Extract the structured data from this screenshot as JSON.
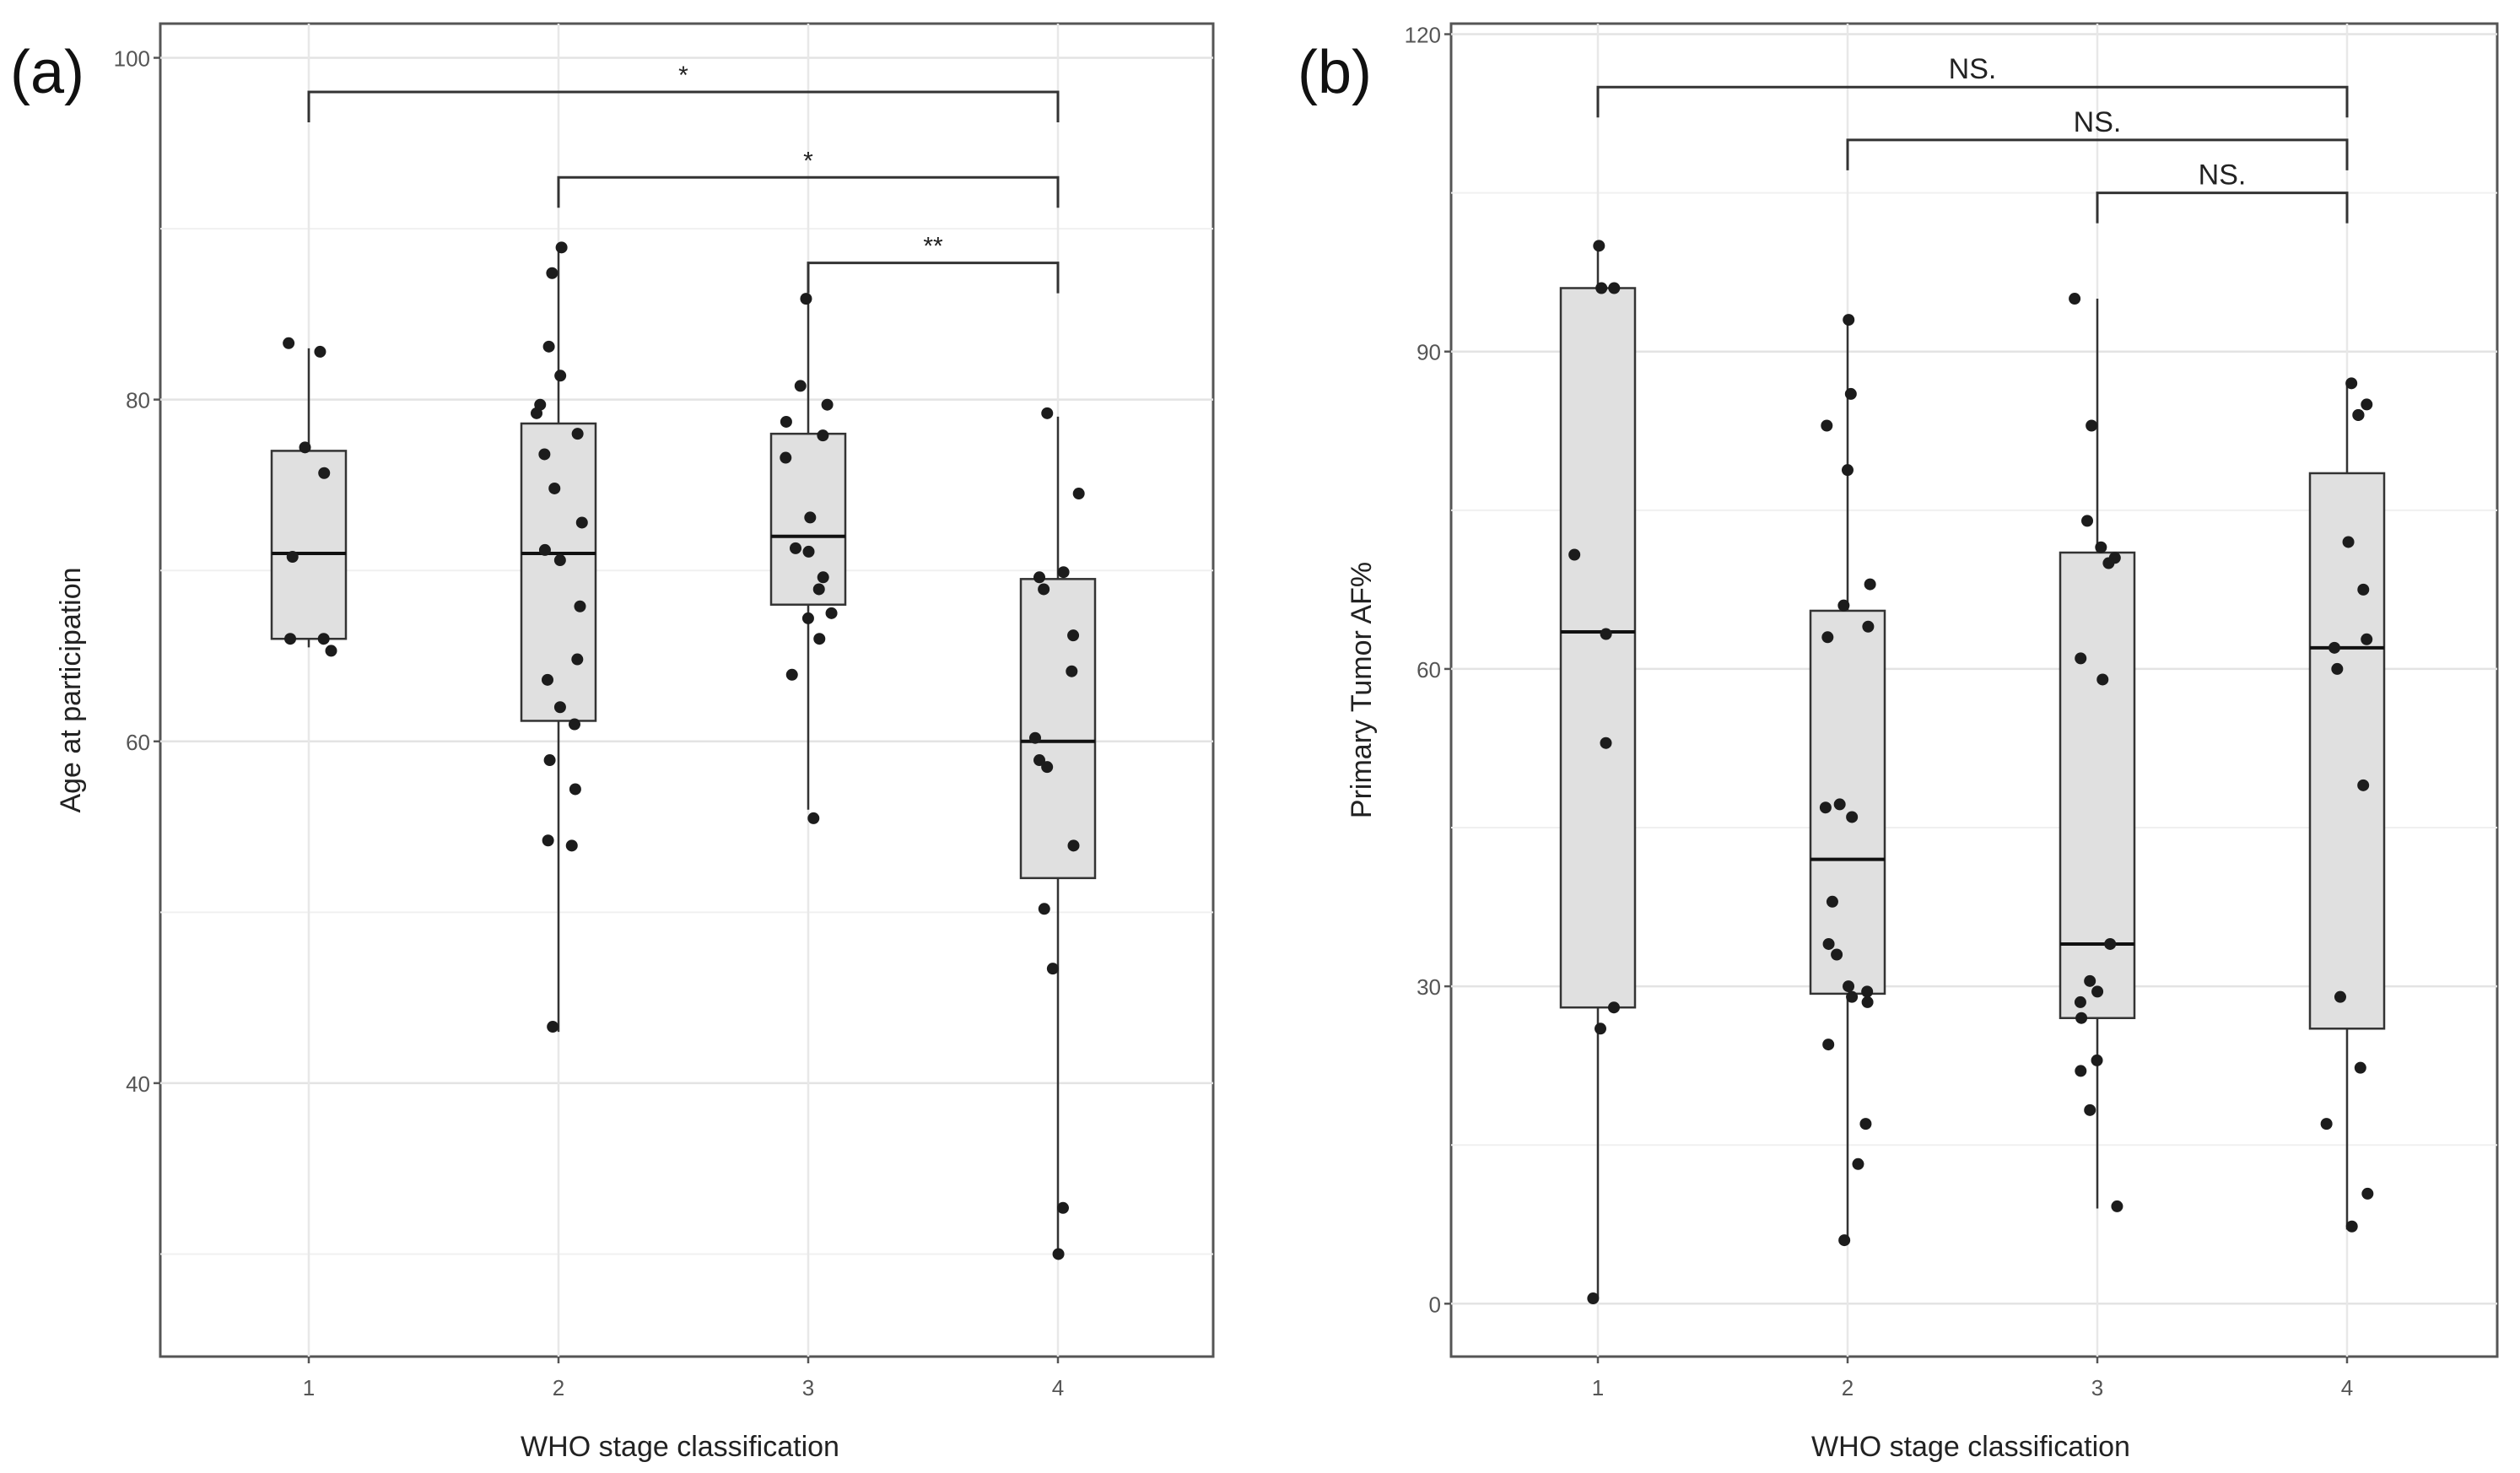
{
  "chart_data": [
    {
      "type": "box",
      "panel_label": "(a)",
      "xlabel": "WHO stage classification",
      "ylabel": "Age at participation",
      "categories": [
        "1",
        "2",
        "3",
        "4"
      ],
      "ylim": [
        24,
        102
      ],
      "yticks": [
        40,
        60,
        80,
        100
      ],
      "grid": true,
      "boxes": [
        {
          "category": "1",
          "whisker_low": 65.5,
          "q1": 66,
          "median": 71,
          "q3": 77,
          "whisker_high": 83
        },
        {
          "category": "2",
          "whisker_low": 43,
          "q1": 61.2,
          "median": 71,
          "q3": 78.6,
          "whisker_high": 89
        },
        {
          "category": "3",
          "whisker_low": 56,
          "q1": 68,
          "median": 72,
          "q3": 78,
          "whisker_high": 86
        },
        {
          "category": "4",
          "whisker_low": 30,
          "q1": 52,
          "median": 60,
          "q3": 69.5,
          "whisker_high": 79
        }
      ],
      "points": [
        {
          "category": "1",
          "values": [
            82.8,
            83.3,
            77.2,
            75.7,
            70.8,
            66.0,
            66.0,
            65.3
          ]
        },
        {
          "category": "2",
          "values": [
            88.9,
            87.4,
            83.1,
            81.4,
            79.7,
            79.2,
            78.0,
            76.8,
            74.8,
            72.8,
            71.2,
            70.6,
            67.9,
            64.8,
            63.6,
            62.0,
            61.0,
            58.9,
            57.2,
            54.2,
            53.9,
            43.3
          ]
        },
        {
          "category": "3",
          "values": [
            85.9,
            80.8,
            79.7,
            78.7,
            77.9,
            76.6,
            73.1,
            71.3,
            71.1,
            69.6,
            68.9,
            67.5,
            67.2,
            66.0,
            63.9,
            55.5
          ]
        },
        {
          "category": "4",
          "values": [
            79.2,
            74.5,
            69.9,
            69.6,
            68.9,
            66.2,
            64.1,
            60.2,
            58.9,
            58.5,
            53.9,
            50.2,
            46.7,
            32.7,
            30.0
          ]
        }
      ],
      "comparisons": [
        {
          "from": "1",
          "to": "4",
          "label": "*",
          "y": 98
        },
        {
          "from": "2",
          "to": "4",
          "label": "*",
          "y": 93
        },
        {
          "from": "3",
          "to": "4",
          "label": "**",
          "y": 88
        }
      ]
    },
    {
      "type": "box",
      "panel_label": "(b)",
      "xlabel": "WHO stage classification",
      "ylabel": "Primary Tumor AF%",
      "categories": [
        "1",
        "2",
        "3",
        "4"
      ],
      "ylim": [
        -5,
        121
      ],
      "yticks": [
        0,
        30,
        60,
        90,
        120
      ],
      "grid": true,
      "boxes": [
        {
          "category": "1",
          "whisker_low": 0.5,
          "q1": 28,
          "median": 63.5,
          "q3": 96,
          "whisker_high": 100
        },
        {
          "category": "2",
          "whisker_low": 6,
          "q1": 29.3,
          "median": 42,
          "q3": 65.5,
          "whisker_high": 93
        },
        {
          "category": "3",
          "whisker_low": 9,
          "q1": 27,
          "median": 34,
          "q3": 71,
          "whisker_high": 95
        },
        {
          "category": "4",
          "whisker_low": 7,
          "q1": 26,
          "median": 62,
          "q3": 78.5,
          "whisker_high": 87
        }
      ],
      "points": [
        {
          "category": "1",
          "values": [
            100.0,
            96.0,
            96.0,
            70.8,
            63.3,
            53.0,
            28.0,
            26.0,
            0.5
          ]
        },
        {
          "category": "2",
          "values": [
            93.0,
            86.0,
            83.0,
            78.8,
            68.0,
            66.0,
            64.0,
            63.0,
            47.2,
            46.9,
            46.0,
            38.0,
            34.0,
            33.0,
            30.0,
            29.5,
            29.0,
            28.5,
            24.5,
            17.0,
            13.2,
            6.0
          ]
        },
        {
          "category": "3",
          "values": [
            95.0,
            83.0,
            74.0,
            71.5,
            70.5,
            70.0,
            61.0,
            59.0,
            34.0,
            30.5,
            29.5,
            28.5,
            27.0,
            23.0,
            22.0,
            18.3,
            9.2
          ]
        },
        {
          "category": "4",
          "values": [
            87.0,
            85.0,
            84.0,
            84.0,
            72.0,
            67.5,
            62.8,
            62.0,
            60.0,
            49.0,
            29.0,
            22.3,
            17.0,
            10.4,
            7.3
          ]
        }
      ],
      "comparisons": [
        {
          "from": "1",
          "to": "4",
          "label": "NS.",
          "y": 115
        },
        {
          "from": "2",
          "to": "4",
          "label": "NS.",
          "y": 110
        },
        {
          "from": "3",
          "to": "4",
          "label": "NS.",
          "y": 105
        }
      ]
    }
  ]
}
